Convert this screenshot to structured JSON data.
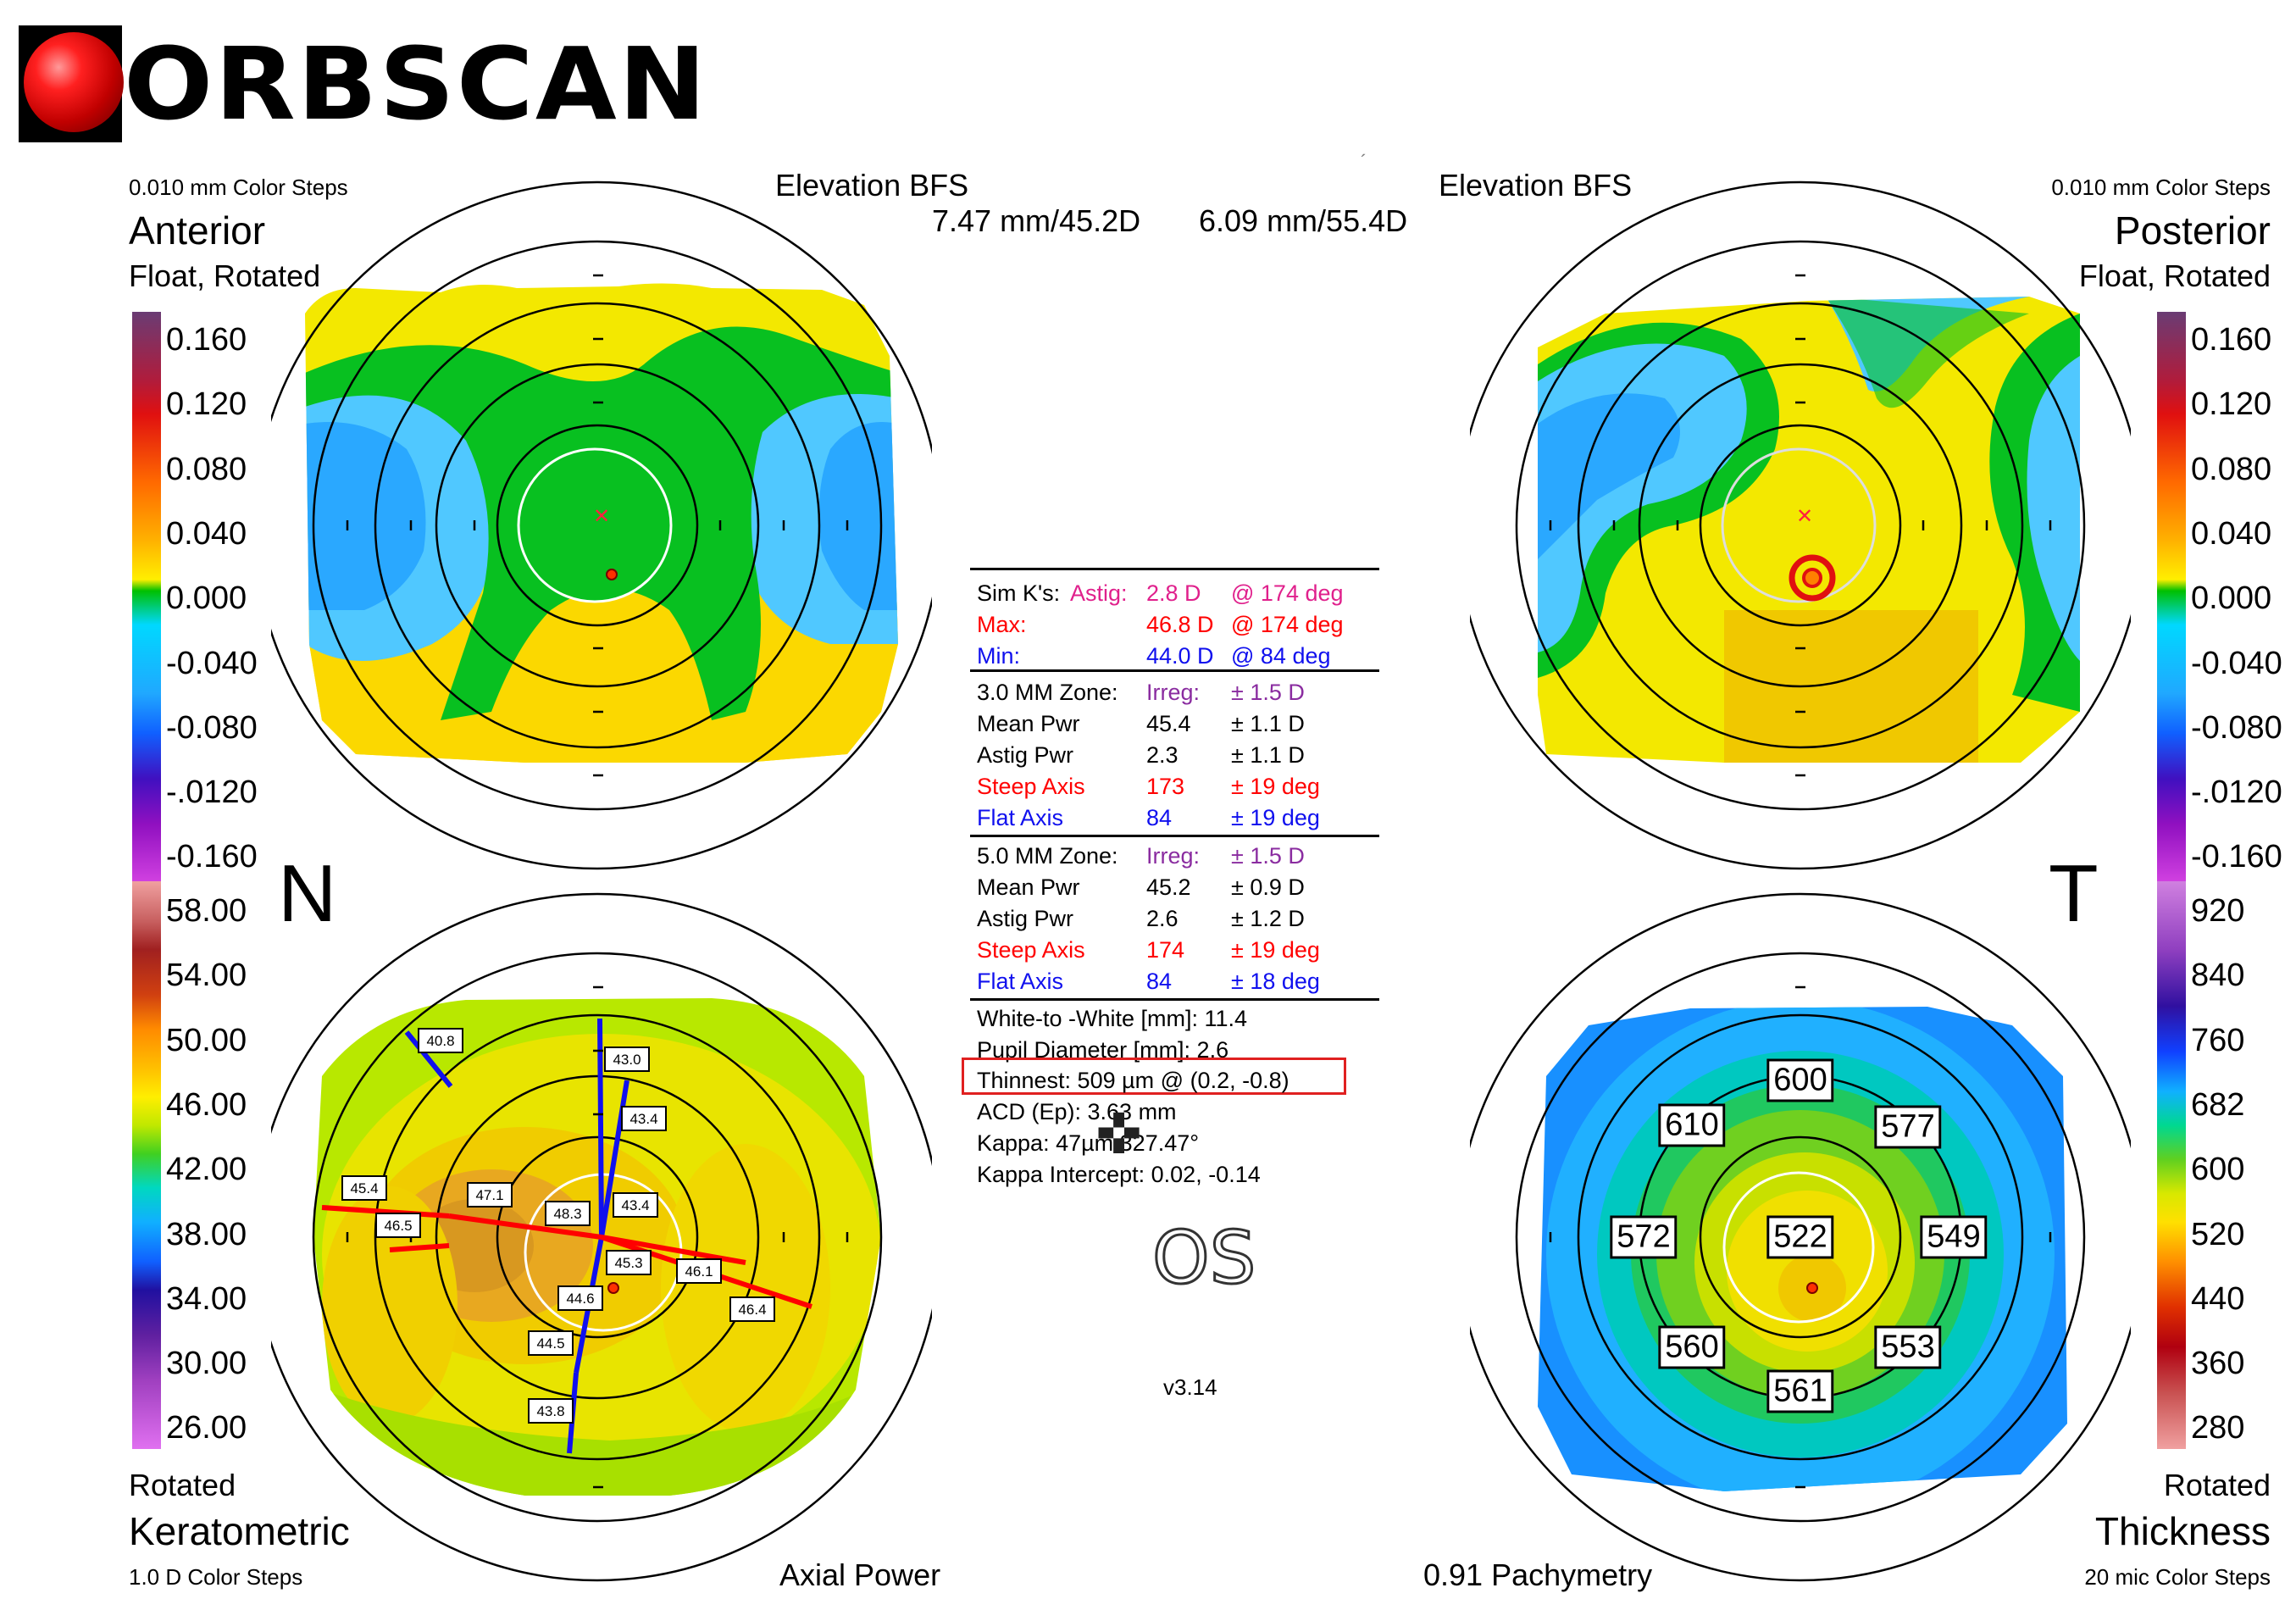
{
  "logo": {
    "text": "ORBSCAN"
  },
  "anterior": {
    "color_steps": "0.010 mm Color Steps",
    "title": "Anterior",
    "subtitle": "Float, Rotated",
    "map_label": "Elevation BFS",
    "bfs": "7.47 mm/45.2D"
  },
  "posterior": {
    "color_steps": "0.010 mm Color Steps",
    "title": "Posterior",
    "subtitle": "Float, Rotated",
    "map_label": "Elevation BFS",
    "bfs": "6.09 mm/55.4D"
  },
  "keratometric": {
    "mode": "Rotated",
    "title": "Keratometric",
    "color_steps": "1.0 D Color Steps",
    "map_label": "Axial Power",
    "values": [
      "40.8",
      "43.0",
      "43.4",
      "45.4",
      "46.5",
      "47.1",
      "48.3",
      "43.4",
      "45.3",
      "46.1",
      "44.6",
      "46.4",
      "44.5",
      "43.8"
    ]
  },
  "thickness": {
    "mode": "Rotated",
    "title": "Thickness",
    "color_steps": "20 mic Color Steps",
    "map_label": "0.91 Pachymetry",
    "values": {
      "top": "600",
      "top_left": "610",
      "top_right": "577",
      "left": "572",
      "center": "522",
      "right": "549",
      "bottom_left": "560",
      "bottom_right": "553",
      "bottom": "561"
    }
  },
  "side_letters": {
    "nasal": "N",
    "temporal": "T"
  },
  "elevation_scale": [
    "0.160",
    "0.120",
    "0.080",
    "0.040",
    "0.000",
    "-0.040",
    "-0.080",
    "-.0120",
    "-0.160"
  ],
  "power_scale": [
    "58.00",
    "54.00",
    "50.00",
    "46.00",
    "42.00",
    "38.00",
    "34.00",
    "30.00",
    "26.00"
  ],
  "thickness_scale": [
    "920",
    "840",
    "760",
    "682",
    "600",
    "520",
    "440",
    "360",
    "280"
  ],
  "sim_k": {
    "label": "Sim K's:",
    "astig_label": "Astig:",
    "astig_value": "2.8 D",
    "astig_axis": "@ 174 deg",
    "max_label": "Max:",
    "max_value": "46.8 D",
    "max_axis": "@ 174 deg",
    "min_label": "Min:",
    "min_value": "44.0 D",
    "min_axis": "@ 84 deg"
  },
  "zone3": {
    "label": "3.0 MM Zone:",
    "irreg_label": "Irreg:",
    "irreg_value": "± 1.5 D",
    "mean_label": "Mean Pwr",
    "mean_value": "45.4",
    "mean_err": "± 1.1 D",
    "astig_label": "Astig Pwr",
    "astig_value": "2.3",
    "astig_err": "± 1.1 D",
    "steep_label": "Steep Axis",
    "steep_value": "173",
    "steep_err": "± 19 deg",
    "flat_label": "Flat Axis",
    "flat_value": "84",
    "flat_err": "± 19 deg"
  },
  "zone5": {
    "label": "5.0 MM Zone:",
    "irreg_label": "Irreg:",
    "irreg_value": "± 1.5 D",
    "mean_label": "Mean Pwr",
    "mean_value": "45.2",
    "mean_err": "± 0.9 D",
    "astig_label": "Astig Pwr",
    "astig_value": "2.6",
    "astig_err": "± 1.2 D",
    "steep_label": "Steep Axis",
    "steep_value": "174",
    "steep_err": "± 19 deg",
    "flat_label": "Flat Axis",
    "flat_value": "84",
    "flat_err": "± 18 deg"
  },
  "measurements": {
    "wtw": "White-to -White [mm]: 11.4",
    "pupil": "Pupil Diameter [mm]: 2.6",
    "thinnest": "Thinnest: 509 µm @ (0.2, -0.8)",
    "acd": "ACD (Ep): 3.63 mm",
    "kappa": "Kappa: 47µm 327.47°",
    "kappa_intercept": "Kappa Intercept: 0.02, -0.14"
  },
  "eye": "OS",
  "version": "v3.14",
  "colors": {
    "magenta": "#e0208c",
    "red": "#ff0000",
    "blue": "#1010ee",
    "purple": "#8a2ca0",
    "thinnest_box": "#e02020"
  }
}
